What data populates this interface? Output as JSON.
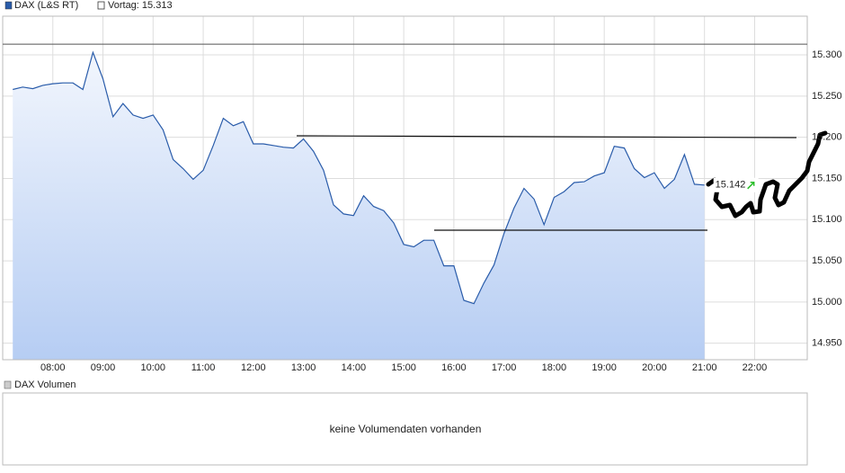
{
  "chart_data": {
    "type": "line",
    "series": [
      {
        "name": "DAX (L&S RT)",
        "color": "#2a5caa",
        "values": [
          15258,
          15261,
          15259,
          15263,
          15265,
          15266,
          15266,
          15258,
          15303,
          15271,
          15225,
          15241,
          15227,
          15223,
          15227,
          15209,
          15173,
          15162,
          15149,
          15160,
          15190,
          15223,
          15214,
          15219,
          15192,
          15192,
          15190,
          15188,
          15187,
          15198,
          15183,
          15160,
          15118,
          15107,
          15105,
          15129,
          15116,
          15111,
          15096,
          15070,
          15067,
          15075,
          15075,
          15044,
          15044,
          15002,
          14998,
          15023,
          15045,
          15083,
          15114,
          15138,
          15125,
          15094,
          15127,
          15134,
          15145,
          15146,
          15153,
          15157,
          15189,
          15187,
          15162,
          15151,
          15157,
          15138,
          15149,
          15179,
          15143,
          15142
        ]
      }
    ],
    "x": [
      7.2,
      7.4,
      7.6,
      7.8,
      8.0,
      8.2,
      8.4,
      8.6,
      8.8,
      9.0,
      9.2,
      9.4,
      9.6,
      9.8,
      10.0,
      10.2,
      10.4,
      10.6,
      10.8,
      11.0,
      11.2,
      11.4,
      11.6,
      11.8,
      12.0,
      12.2,
      12.4,
      12.6,
      12.8,
      13.0,
      13.2,
      13.4,
      13.6,
      13.8,
      14.0,
      14.2,
      14.4,
      14.6,
      14.8,
      15.0,
      15.2,
      15.4,
      15.6,
      15.8,
      16.0,
      16.2,
      16.4,
      16.6,
      16.8,
      17.0,
      17.2,
      17.4,
      17.6,
      17.8,
      18.0,
      18.2,
      18.4,
      18.6,
      18.8,
      19.0,
      19.2,
      19.4,
      19.6,
      19.8,
      20.0,
      20.2,
      20.4,
      20.6,
      20.8,
      21.0
    ],
    "xlim": [
      7.0,
      23.05
    ],
    "ylim": [
      14930,
      15347
    ],
    "xticks": [
      {
        "value": 8,
        "label": "08:00"
      },
      {
        "value": 9,
        "label": "09:00"
      },
      {
        "value": 10,
        "label": "10:00"
      },
      {
        "value": 11,
        "label": "11:00"
      },
      {
        "value": 12,
        "label": "12:00"
      },
      {
        "value": 13,
        "label": "13:00"
      },
      {
        "value": 14,
        "label": "14:00"
      },
      {
        "value": 15,
        "label": "15:00"
      },
      {
        "value": 16,
        "label": "16:00"
      },
      {
        "value": 17,
        "label": "17:00"
      },
      {
        "value": 18,
        "label": "18:00"
      },
      {
        "value": 19,
        "label": "19:00"
      },
      {
        "value": 20,
        "label": "20:00"
      },
      {
        "value": 21,
        "label": "21:00"
      },
      {
        "value": 22,
        "label": "22:00"
      }
    ],
    "yticks": [
      {
        "value": 14950,
        "label": "14.950"
      },
      {
        "value": 15000,
        "label": "15.000"
      },
      {
        "value": 15050,
        "label": "15.050"
      },
      {
        "value": 15100,
        "label": "15.100"
      },
      {
        "value": 15150,
        "label": "15.150"
      },
      {
        "value": 15200,
        "label": "15.200"
      },
      {
        "value": 15250,
        "label": "15.250"
      },
      {
        "value": 15300,
        "label": "15.300"
      }
    ],
    "grid": true,
    "previous_close": {
      "value": 15313,
      "label": "Vortag: 15.313"
    },
    "last_value": {
      "value": 15142,
      "label": "15.142"
    }
  },
  "volume_panel": {
    "legend": "DAX Volumen",
    "message": "keine Volumendaten vorhanden"
  }
}
